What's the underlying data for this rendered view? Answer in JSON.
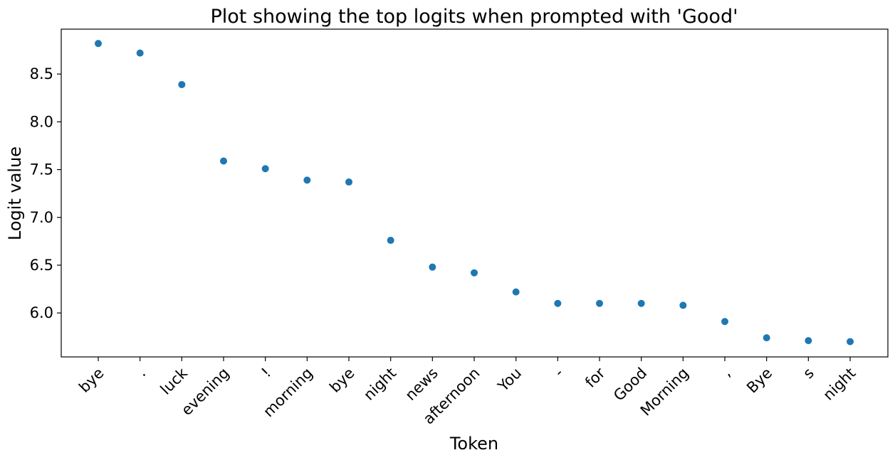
{
  "chart_data": {
    "type": "scatter",
    "title": "Plot showing the top logits when prompted with 'Good'",
    "xlabel": "Token",
    "ylabel": "Logit value",
    "categories": [
      "bye",
      ".",
      "luck",
      "evening",
      "!",
      "morning",
      "bye",
      "night",
      "news",
      "afternoon",
      "You",
      "-",
      "for",
      "Good",
      "Morning",
      ",",
      "Bye",
      "s",
      "night"
    ],
    "values": [
      8.82,
      8.72,
      8.39,
      7.59,
      7.51,
      7.39,
      7.37,
      6.76,
      6.48,
      6.42,
      6.22,
      6.1,
      6.1,
      6.1,
      6.08,
      5.91,
      5.74,
      5.71,
      5.7
    ],
    "yticks": [
      6.0,
      6.5,
      7.0,
      7.5,
      8.0,
      8.5
    ],
    "ylim": [
      5.54,
      8.97
    ],
    "grid": false,
    "marker_color": "#1f77b4"
  }
}
